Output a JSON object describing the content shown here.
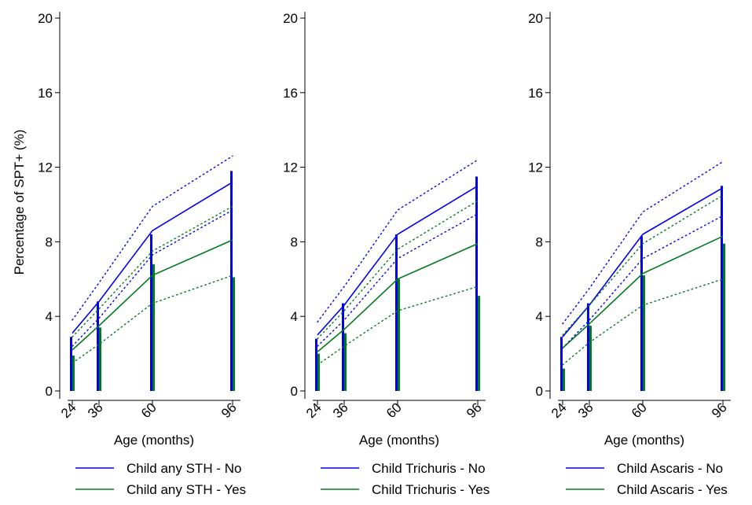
{
  "colors": {
    "no": "#0000ee",
    "yes": "#007a1e",
    "axis": "#000000"
  },
  "chart_data": [
    {
      "type": "line",
      "panel": "Child any STH",
      "xlabel": "Age (months)",
      "ylabel": "Percentage of SPT+ (%)",
      "x": [
        24,
        36,
        60,
        96
      ],
      "x_ticks": [
        24,
        36,
        60,
        96
      ],
      "y_ticks": [
        0,
        4,
        8,
        12,
        16,
        20
      ],
      "ylim": [
        0,
        20
      ],
      "series": [
        {
          "name": "Child any STH - No",
          "group": "no",
          "values": [
            3.1,
            4.8,
            8.6,
            11.2
          ],
          "ci_lower": [
            2.4,
            3.9,
            7.3,
            9.7
          ],
          "ci_upper": [
            3.8,
            5.8,
            9.9,
            12.6
          ],
          "bars": [
            2.9,
            4.8,
            8.4,
            11.8
          ]
        },
        {
          "name": "Child any STH - Yes",
          "group": "yes",
          "values": [
            2.2,
            3.5,
            6.2,
            8.1
          ],
          "ci_lower": [
            1.5,
            2.5,
            4.7,
            6.2
          ],
          "ci_upper": [
            2.9,
            4.4,
            7.5,
            9.9
          ],
          "bars": [
            1.9,
            3.4,
            6.8,
            6.1
          ]
        }
      ]
    },
    {
      "type": "line",
      "panel": "Child Trichuris",
      "xlabel": "Age (months)",
      "ylabel": "",
      "x": [
        24,
        36,
        60,
        96
      ],
      "x_ticks": [
        24,
        36,
        60,
        96
      ],
      "y_ticks": [
        0,
        4,
        8,
        12,
        16,
        20
      ],
      "ylim": [
        0,
        20
      ],
      "series": [
        {
          "name": "Child Trichuris - No",
          "group": "no",
          "values": [
            3.0,
            4.6,
            8.4,
            11.0
          ],
          "ci_lower": [
            2.4,
            3.8,
            7.1,
            9.5
          ],
          "ci_upper": [
            3.7,
            5.6,
            9.7,
            12.4
          ],
          "bars": [
            2.8,
            4.7,
            8.4,
            11.5
          ]
        },
        {
          "name": "Child Trichuris - Yes",
          "group": "yes",
          "values": [
            2.1,
            3.3,
            6.0,
            7.9
          ],
          "ci_lower": [
            1.4,
            2.4,
            4.3,
            5.6
          ],
          "ci_upper": [
            2.8,
            4.3,
            7.6,
            10.2
          ],
          "bars": [
            2.0,
            3.1,
            6.0,
            5.1
          ]
        }
      ]
    },
    {
      "type": "line",
      "panel": "Child Ascaris",
      "xlabel": "Age (months)",
      "ylabel": "",
      "x": [
        24,
        36,
        60,
        96
      ],
      "x_ticks": [
        24,
        36,
        60,
        96
      ],
      "y_ticks": [
        0,
        4,
        8,
        12,
        16,
        20
      ],
      "ylim": [
        0,
        20
      ],
      "series": [
        {
          "name": "Child Ascaris - No",
          "group": "no",
          "values": [
            2.9,
            4.6,
            8.4,
            10.9
          ],
          "ci_lower": [
            2.3,
            3.8,
            7.1,
            9.4
          ],
          "ci_upper": [
            3.6,
            5.5,
            9.6,
            12.3
          ],
          "bars": [
            2.9,
            4.7,
            8.3,
            11.0
          ]
        },
        {
          "name": "Child Ascaris - Yes",
          "group": "yes",
          "values": [
            2.3,
            3.6,
            6.3,
            8.3
          ],
          "ci_lower": [
            1.4,
            2.6,
            4.6,
            6.0
          ],
          "ci_upper": [
            3.0,
            4.6,
            7.9,
            10.5
          ],
          "bars": [
            1.2,
            3.5,
            6.2,
            7.9
          ]
        }
      ]
    }
  ]
}
